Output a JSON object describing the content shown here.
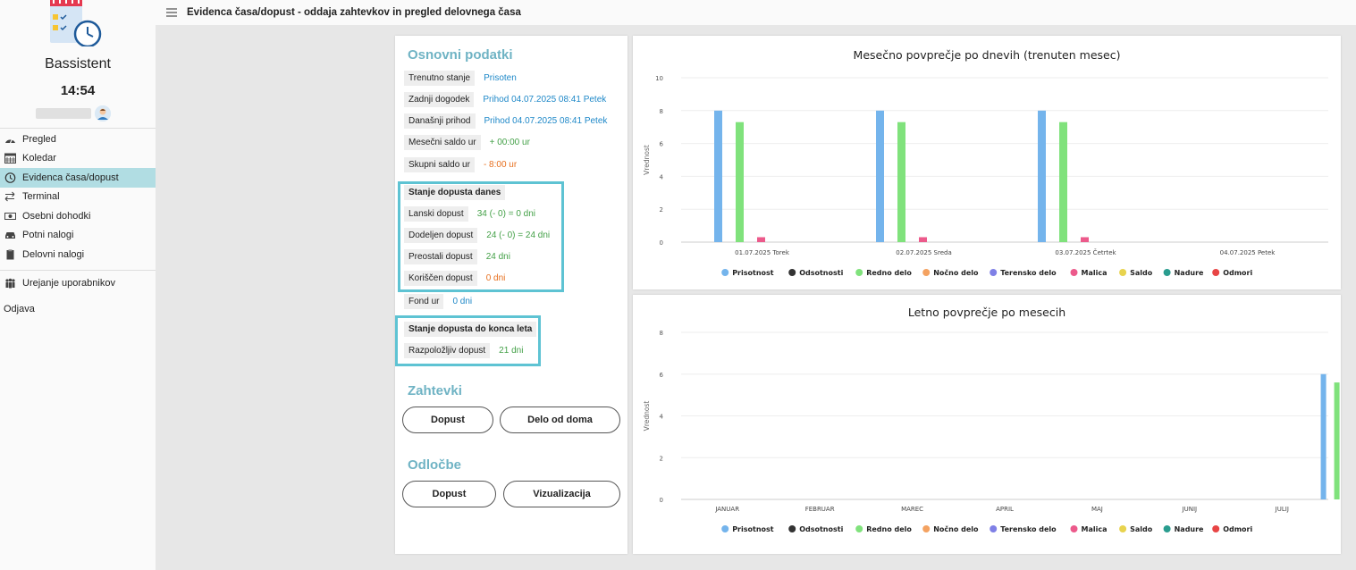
{
  "app": {
    "name": "Bassistent",
    "time": "14:54"
  },
  "header": {
    "title": "Evidenca časa/dopust - oddaja zahtevkov in pregled delovnega časa"
  },
  "nav": {
    "items": [
      {
        "label": "Pregled",
        "icon": "dashboard-icon"
      },
      {
        "label": "Koledar",
        "icon": "calendar-icon"
      },
      {
        "label": "Evidenca časa/dopust",
        "icon": "clock-icon",
        "active": true
      },
      {
        "label": "Terminal",
        "icon": "swap-icon"
      },
      {
        "label": "Osebni dohodki",
        "icon": "money-icon"
      },
      {
        "label": "Potni nalogi",
        "icon": "car-icon"
      },
      {
        "label": "Delovni nalogi",
        "icon": "clipboard-icon"
      }
    ],
    "admin_label": "Urejanje uporabnikov",
    "logout_label": "Odjava"
  },
  "info": {
    "title": "Osnovni podatki",
    "trenutno_stanje": {
      "label": "Trenutno stanje",
      "value": "Prisoten"
    },
    "zadnji_dogodek": {
      "label": "Zadnji dogodek",
      "value": "Prihod 04.07.2025 08:41 Petek"
    },
    "danasnji_prihod": {
      "label": "Današnji prihod",
      "value": "Prihod 04.07.2025 08:41 Petek"
    },
    "mesecni_saldo": {
      "label": "Mesečni saldo ur",
      "value": "+ 00:00 ur"
    },
    "skupni_saldo": {
      "label": "Skupni saldo ur",
      "value": "- 8:00 ur"
    },
    "dopust_danes": {
      "title": "Stanje dopusta danes",
      "lanski": {
        "label": "Lanski dopust",
        "value": "34 (- 0) = 0 dni"
      },
      "dodeljen": {
        "label": "Dodeljen dopust",
        "value": "24 (- 0) = 24 dni"
      },
      "preostali": {
        "label": "Preostali dopust",
        "value": "24 dni"
      },
      "koriscen": {
        "label": "Koriščen dopust",
        "value": "0 dni"
      }
    },
    "fond": {
      "label": "Fond ur",
      "value": "0 dni"
    },
    "dopust_leto": {
      "title": "Stanje dopusta do konca leta",
      "razpolozljiv": {
        "label": "Razpoložljiv dopust",
        "value": "21 dni"
      }
    },
    "zahtevki_title": "Zahtevki",
    "zahtevki_buttons": {
      "dopust": "Dopust",
      "delo_od_doma": "Delo od doma"
    },
    "odlocbe_title": "Odločbe",
    "odlocbe_buttons": {
      "dopust": "Dopust",
      "vizualizacija": "Vizualizacija"
    }
  },
  "legend": [
    {
      "name": "Prisotnost",
      "color": "#74b4ec"
    },
    {
      "name": "Odsotnosti",
      "color": "#333333"
    },
    {
      "name": "Redno delo",
      "color": "#80e27c"
    },
    {
      "name": "Nočno delo",
      "color": "#f4a261"
    },
    {
      "name": "Terensko delo",
      "color": "#7f80e6"
    },
    {
      "name": "Malica",
      "color": "#ec5a8b"
    },
    {
      "name": "Saldo",
      "color": "#e8d34e"
    },
    {
      "name": "Nadure",
      "color": "#2a9d8f"
    },
    {
      "name": "Odmori",
      "color": "#e84545"
    }
  ],
  "chart_data": [
    {
      "type": "bar",
      "title": "Mesečno povprečje po dnevih (trenuten mesec)",
      "ylabel": "Vrednost",
      "xlabel": "",
      "ylim": [
        0,
        10
      ],
      "yticks": [
        0,
        2,
        4,
        6,
        8,
        10
      ],
      "categories": [
        "01.07.2025 Torek",
        "02.07.2025 Sreda",
        "03.07.2025 Četrtek",
        "04.07.2025 Petek"
      ],
      "series": [
        {
          "name": "Prisotnost",
          "values": [
            8,
            8,
            8,
            0
          ]
        },
        {
          "name": "Redno delo",
          "values": [
            7.3,
            7.3,
            7.3,
            0
          ]
        },
        {
          "name": "Malica",
          "values": [
            0.3,
            0.3,
            0.3,
            0
          ]
        }
      ],
      "grid": true,
      "legend": "bottom"
    },
    {
      "type": "bar",
      "title": "Letno povprečje po mesecih",
      "ylabel": "Vrednost",
      "xlabel": "",
      "ylim": [
        0,
        8
      ],
      "yticks": [
        0,
        2,
        4,
        6,
        8
      ],
      "categories": [
        "JANUAR",
        "FEBRUAR",
        "MAREC",
        "APRIL",
        "MAJ",
        "JUNIJ",
        "JULIJ"
      ],
      "series": [
        {
          "name": "Prisotnost",
          "values": [
            0,
            0,
            0,
            0,
            0,
            0,
            6
          ]
        },
        {
          "name": "Redno delo",
          "values": [
            0,
            0,
            0,
            0,
            0,
            0,
            5.6
          ]
        },
        {
          "name": "Malica",
          "values": [
            0,
            0,
            0,
            0,
            0,
            0,
            0.3
          ]
        }
      ],
      "grid": true,
      "legend": "bottom"
    }
  ]
}
